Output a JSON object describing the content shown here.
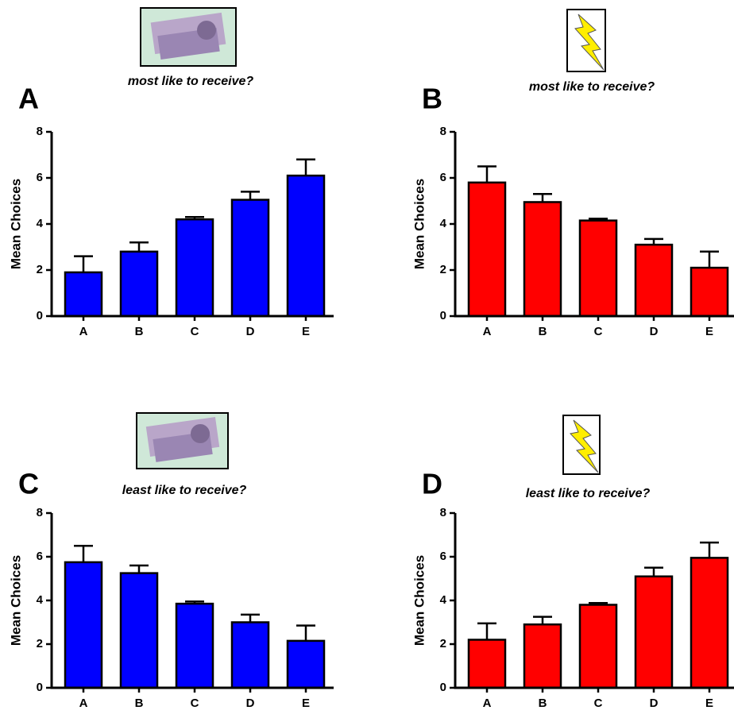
{
  "chart_data": [
    {
      "type": "bar",
      "label": "A",
      "subtitle": "most like to receive?",
      "y_label": "Mean Choices",
      "categories": [
        "A",
        "B",
        "C",
        "D",
        "E"
      ],
      "values": [
        1.9,
        2.8,
        4.2,
        5.05,
        6.1
      ],
      "errors": [
        0.7,
        0.4,
        0.1,
        0.35,
        0.7
      ],
      "color": "#0000ff",
      "ylim": [
        0,
        8
      ],
      "yticks": [
        0,
        2,
        4,
        6,
        8
      ]
    },
    {
      "type": "bar",
      "label": "B",
      "subtitle": "most like to receive?",
      "y_label": "Mean Choices",
      "categories": [
        "A",
        "B",
        "C",
        "D",
        "E"
      ],
      "values": [
        5.8,
        4.95,
        4.15,
        3.1,
        2.1
      ],
      "errors": [
        0.7,
        0.35,
        0.08,
        0.25,
        0.7
      ],
      "color": "#ff0000",
      "ylim": [
        0,
        8
      ],
      "yticks": [
        0,
        2,
        4,
        6,
        8
      ]
    },
    {
      "type": "bar",
      "label": "C",
      "subtitle": "least like to receive?",
      "y_label": "Mean Choices",
      "categories": [
        "A",
        "B",
        "C",
        "D",
        "E"
      ],
      "values": [
        5.75,
        5.25,
        3.85,
        3.0,
        2.15
      ],
      "errors": [
        0.75,
        0.35,
        0.1,
        0.35,
        0.7
      ],
      "color": "#0000ff",
      "ylim": [
        0,
        8
      ],
      "yticks": [
        0,
        2,
        4,
        6,
        8
      ]
    },
    {
      "type": "bar",
      "label": "D",
      "subtitle": "least like to receive?",
      "y_label": "Mean Choices",
      "categories": [
        "A",
        "B",
        "C",
        "D",
        "E"
      ],
      "values": [
        2.2,
        2.9,
        3.8,
        5.1,
        5.95
      ],
      "errors": [
        0.75,
        0.35,
        0.08,
        0.4,
        0.7
      ],
      "color": "#ff0000",
      "ylim": [
        0,
        8
      ],
      "yticks": [
        0,
        2,
        4,
        6,
        8
      ]
    }
  ]
}
